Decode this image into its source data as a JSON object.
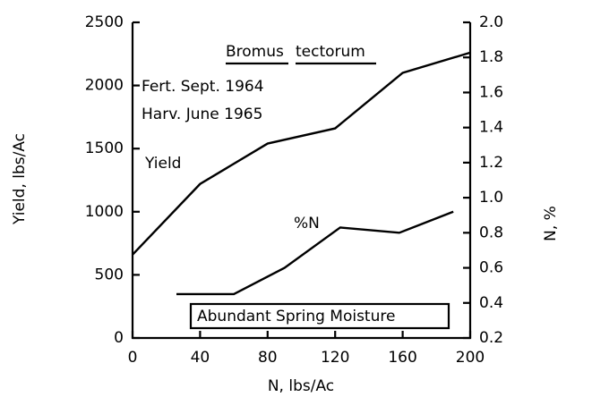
{
  "chart_data": {
    "type": "line",
    "x_label": "N, lbs/Ac",
    "y_label": "Yield, lbs/Ac",
    "y2_label": "N, %",
    "annotations": [
      "Bromus",
      "tectorum",
      "Fert. Sept. 1964",
      "Harv. June 1965",
      "Abundant Spring Moisture"
    ],
    "xlim": [
      0,
      200
    ],
    "xticks": [
      0,
      40,
      80,
      120,
      160,
      200
    ],
    "ylim": [
      0,
      2500
    ],
    "yticks": [
      0,
      500,
      1000,
      1500,
      2000,
      2500
    ],
    "y2lim": [
      0.2,
      2.0
    ],
    "y2ticks": [
      0.2,
      0.4,
      0.6,
      0.8,
      {
        "value": 1.0,
        "label": "1.0"
      },
      1.2,
      1.4,
      1.6,
      1.8,
      {
        "value": 2.0,
        "label": "2.0"
      }
    ],
    "series": [
      {
        "name": "Yield",
        "color": "#000000",
        "x": [
          0,
          40,
          80,
          120,
          160,
          200
        ],
        "values": [
          660,
          1220,
          1540,
          1660,
          2100,
          2260
        ]
      },
      {
        "name": "%N",
        "color": "#000000",
        "axis": "y2",
        "x": [
          26,
          60,
          90,
          123,
          158,
          190
        ],
        "values": [
          0.45,
          0.45,
          0.6,
          0.83,
          0.8,
          0.92
        ]
      }
    ]
  }
}
